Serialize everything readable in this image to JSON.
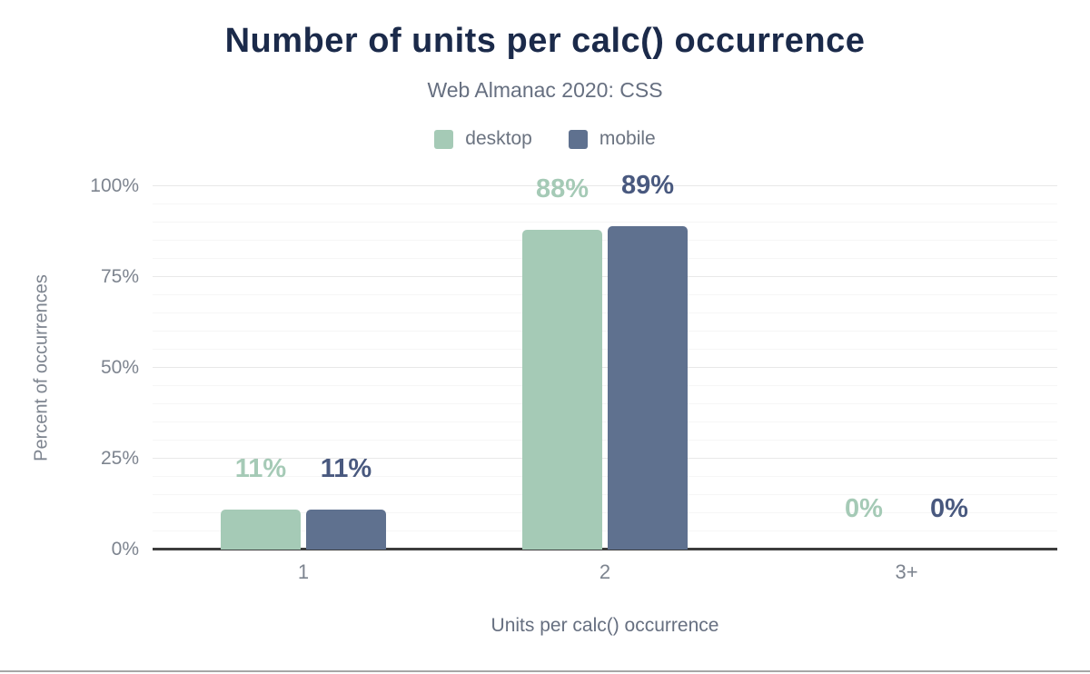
{
  "chart_data": {
    "type": "bar",
    "title": "Number of units per calc() occurrence",
    "subtitle": "Web Almanac 2020: CSS",
    "categories": [
      "1",
      "2",
      "3+"
    ],
    "series": [
      {
        "name": "desktop",
        "values": [
          11,
          88,
          0
        ],
        "color": "#a5cab6",
        "label_color": "#a5cab6"
      },
      {
        "name": "mobile",
        "values": [
          11,
          89,
          0
        ],
        "color": "#5f718f",
        "label_color": "#49597f"
      }
    ],
    "value_suffix": "%",
    "xlabel": "Units per calc() occurrence",
    "ylabel": "Percent of occurrences",
    "ylim": [
      0,
      100
    ],
    "yticks": [
      0,
      25,
      50,
      75,
      100
    ],
    "ytick_suffix": "%",
    "minor_step": 5,
    "major_step": 25,
    "grid": "on",
    "legend_position": "top"
  },
  "colors": {
    "title": "#1b2a4a",
    "subtitle": "#666f80",
    "axis_text": "#7d848f",
    "axis_line": "#3d3d3d",
    "grid_major": "#e8e8e8",
    "grid_minor": "#f6f6f6",
    "figure_border": "#a6a6a6",
    "background": "#ffffff"
  }
}
